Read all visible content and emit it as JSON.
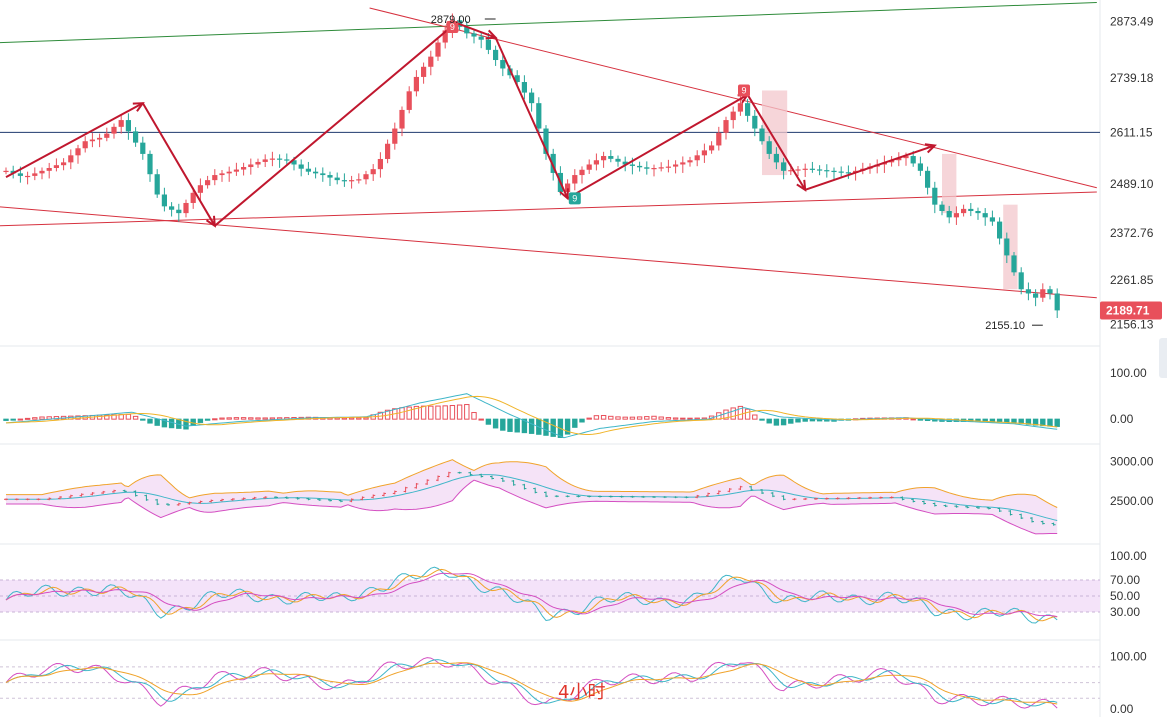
{
  "chart_data": {
    "type": "candlestick",
    "timeframe_label": "4小时",
    "colors": {
      "up": "#e8505b",
      "down": "#26a69a",
      "channel": "#d6313f",
      "trend_upper": "#2e8b3a",
      "hline": "#1f3a6e",
      "arrow": "#c0172e",
      "price_tag": "#e8505b"
    },
    "price_panel": {
      "ylim": [
        2120,
        2905
      ],
      "y_ticks": [
        "2873.49",
        "2739.18",
        "2611.15",
        "2489.10",
        "2372.76",
        "2261.85",
        "2156.13"
      ],
      "y_tick_values": [
        2873.49,
        2739.18,
        2611.15,
        2489.1,
        2372.76,
        2261.85,
        2156.13
      ],
      "hline_value": 2611,
      "high_label": "2879.00",
      "low_label": "2155.10",
      "last_price": "2189.71",
      "marker_up_label": "9",
      "marker_down_label": "9",
      "anchor_points": [
        [
          0,
          2520
        ],
        [
          5,
          2505
        ],
        [
          10,
          2520
        ],
        [
          16,
          2540
        ],
        [
          22,
          2590
        ],
        [
          27,
          2600
        ],
        [
          32,
          2640
        ],
        [
          38,
          2560
        ],
        [
          43,
          2440
        ],
        [
          48,
          2420
        ],
        [
          53,
          2480
        ],
        [
          58,
          2510
        ],
        [
          63,
          2520
        ],
        [
          68,
          2535
        ],
        [
          73,
          2550
        ],
        [
          78,
          2545
        ],
        [
          83,
          2520
        ],
        [
          88,
          2510
        ],
        [
          93,
          2495
        ],
        [
          98,
          2500
        ],
        [
          103,
          2530
        ],
        [
          108,
          2620
        ],
        [
          113,
          2730
        ],
        [
          118,
          2790
        ],
        [
          121,
          2840
        ],
        [
          124,
          2876
        ],
        [
          128,
          2845
        ],
        [
          132,
          2830
        ],
        [
          137,
          2770
        ],
        [
          142,
          2730
        ],
        [
          146,
          2680
        ],
        [
          150,
          2560
        ],
        [
          154,
          2470
        ],
        [
          158,
          2510
        ],
        [
          162,
          2535
        ],
        [
          166,
          2555
        ],
        [
          172,
          2535
        ],
        [
          178,
          2525
        ],
        [
          184,
          2530
        ],
        [
          190,
          2545
        ],
        [
          196,
          2580
        ],
        [
          200,
          2640
        ],
        [
          204,
          2680
        ],
        [
          208,
          2620
        ],
        [
          212,
          2560
        ],
        [
          216,
          2520
        ],
        [
          222,
          2525
        ],
        [
          228,
          2520
        ],
        [
          234,
          2515
        ],
        [
          240,
          2530
        ],
        [
          246,
          2545
        ],
        [
          250,
          2555
        ],
        [
          254,
          2520
        ],
        [
          258,
          2440
        ],
        [
          262,
          2410
        ],
        [
          266,
          2430
        ],
        [
          270,
          2420
        ],
        [
          274,
          2400
        ],
        [
          278,
          2320
        ],
        [
          282,
          2240
        ],
        [
          286,
          2220
        ],
        [
          289,
          2250
        ],
        [
          292,
          2190
        ]
      ]
    },
    "macd_panel": {
      "ylim": [
        -45,
        145
      ],
      "y_ticks": [
        "100.00",
        "0.00"
      ],
      "y_tick_values": [
        100,
        0
      ],
      "anchor_points": [
        [
          0,
          -8
        ],
        [
          20,
          5
        ],
        [
          35,
          15
        ],
        [
          50,
          -15
        ],
        [
          65,
          -5
        ],
        [
          85,
          3
        ],
        [
          100,
          5
        ],
        [
          115,
          35
        ],
        [
          128,
          55
        ],
        [
          140,
          10
        ],
        [
          155,
          -40
        ],
        [
          165,
          -20
        ],
        [
          180,
          -5
        ],
        [
          195,
          0
        ],
        [
          205,
          25
        ],
        [
          215,
          5
        ],
        [
          230,
          -2
        ],
        [
          250,
          3
        ],
        [
          262,
          -3
        ],
        [
          280,
          -10
        ],
        [
          292,
          -22
        ]
      ]
    },
    "boll_panel": {
      "ylim": [
        2000,
        3150
      ],
      "y_ticks": [
        "3000.00",
        "2500.00"
      ],
      "y_tick_values": [
        3000,
        2500
      ],
      "anchor_points": [
        [
          0,
          2520
        ],
        [
          10,
          2520
        ],
        [
          22,
          2590
        ],
        [
          32,
          2640
        ],
        [
          43,
          2440
        ],
        [
          58,
          2510
        ],
        [
          73,
          2550
        ],
        [
          93,
          2495
        ],
        [
          108,
          2620
        ],
        [
          124,
          2876
        ],
        [
          137,
          2770
        ],
        [
          150,
          2560
        ],
        [
          166,
          2555
        ],
        [
          190,
          2545
        ],
        [
          204,
          2680
        ],
        [
          216,
          2520
        ],
        [
          246,
          2545
        ],
        [
          258,
          2440
        ],
        [
          274,
          2400
        ],
        [
          286,
          2220
        ],
        [
          292,
          2190
        ]
      ]
    },
    "rsi_panel": {
      "ylim": [
        0,
        110
      ],
      "y_ticks": [
        "100.00",
        "70.00",
        "50.00",
        "30.00"
      ],
      "y_tick_values": [
        100,
        70,
        50,
        30
      ],
      "band": [
        30,
        70
      ],
      "anchor_points": [
        [
          0,
          45
        ],
        [
          10,
          55
        ],
        [
          22,
          60
        ],
        [
          32,
          55
        ],
        [
          43,
          30
        ],
        [
          58,
          50
        ],
        [
          73,
          50
        ],
        [
          93,
          45
        ],
        [
          108,
          70
        ],
        [
          124,
          80
        ],
        [
          137,
          55
        ],
        [
          150,
          25
        ],
        [
          166,
          45
        ],
        [
          190,
          45
        ],
        [
          204,
          75
        ],
        [
          216,
          45
        ],
        [
          246,
          50
        ],
        [
          258,
          30
        ],
        [
          274,
          30
        ],
        [
          286,
          20
        ],
        [
          292,
          25
        ]
      ]
    },
    "kdj_panel": {
      "ylim": [
        -10,
        120
      ],
      "y_ticks": [
        "100.00",
        "0.00"
      ],
      "y_tick_values": [
        100,
        0
      ],
      "anchor_points": [
        [
          0,
          50
        ],
        [
          10,
          75
        ],
        [
          22,
          80
        ],
        [
          32,
          60
        ],
        [
          43,
          15
        ],
        [
          58,
          60
        ],
        [
          73,
          70
        ],
        [
          93,
          40
        ],
        [
          108,
          85
        ],
        [
          124,
          90
        ],
        [
          137,
          50
        ],
        [
          150,
          5
        ],
        [
          166,
          55
        ],
        [
          190,
          60
        ],
        [
          204,
          95
        ],
        [
          216,
          40
        ],
        [
          246,
          70
        ],
        [
          258,
          20
        ],
        [
          274,
          15
        ],
        [
          286,
          10
        ],
        [
          292,
          5
        ]
      ]
    }
  }
}
